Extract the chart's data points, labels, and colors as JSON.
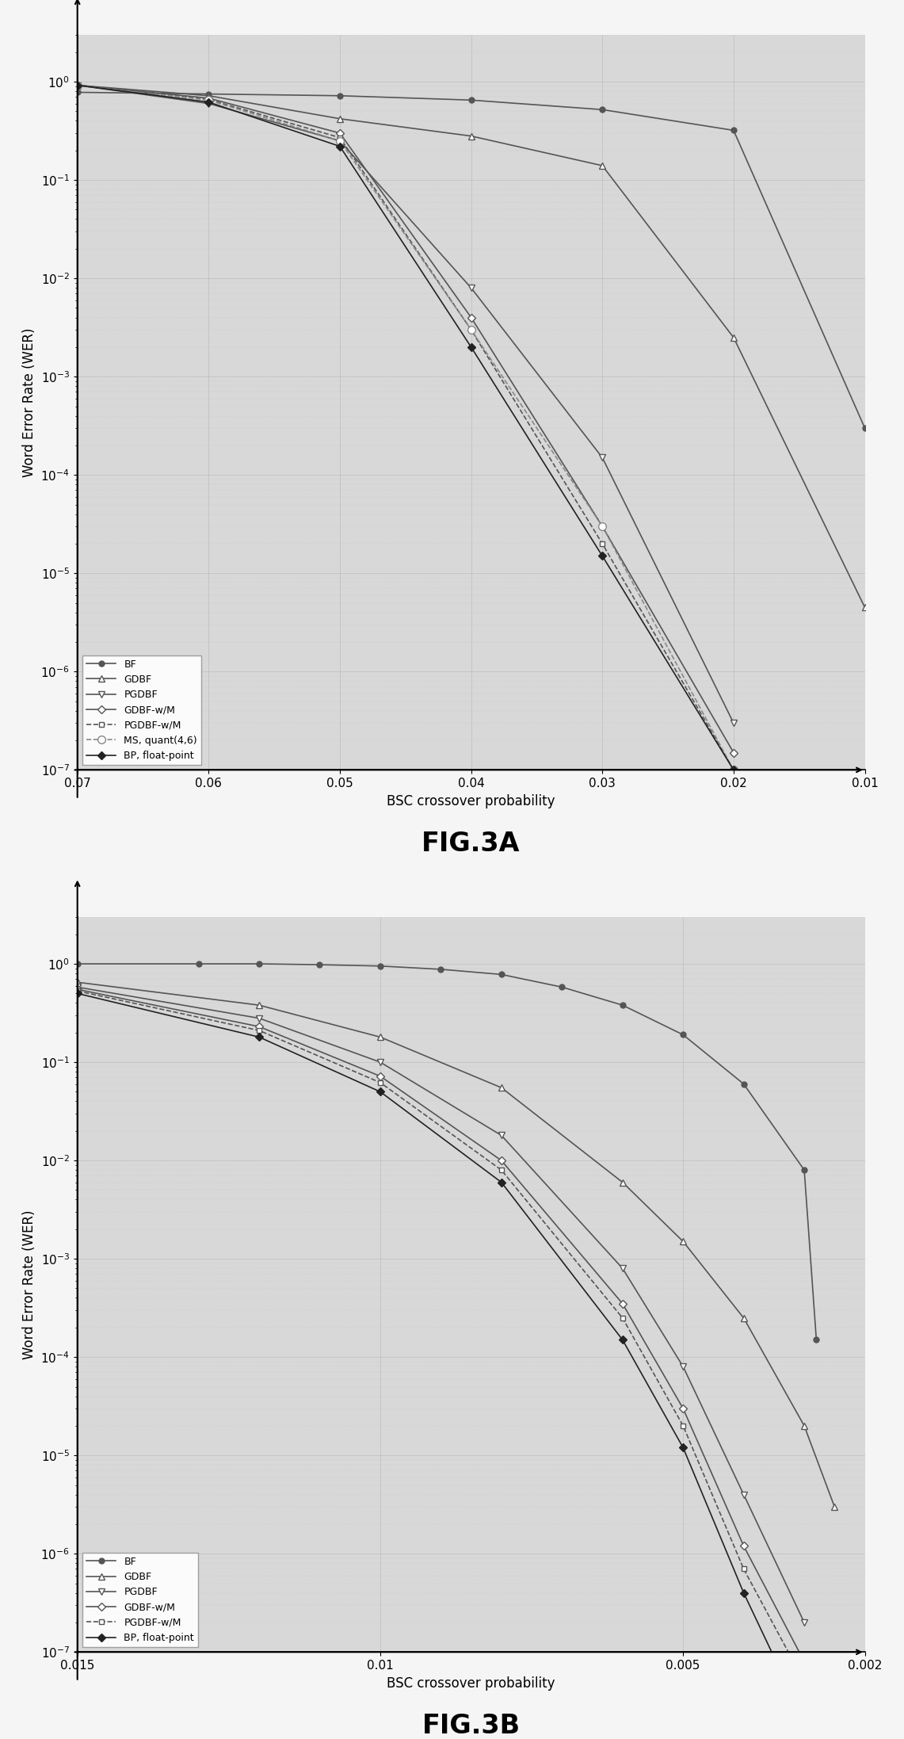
{
  "fig3a": {
    "title": "FIG.3A",
    "xlabel": "BSC crossover probability",
    "ylabel": "Word Error Rate (WER)",
    "xlim_left": 0.07,
    "xlim_right": 0.01,
    "ylim": [
      1e-07,
      3.0
    ],
    "xticks": [
      0.07,
      0.06,
      0.05,
      0.04,
      0.03,
      0.02,
      0.01
    ],
    "series": [
      {
        "label": "BF",
        "marker": "o",
        "markersize": 5,
        "linestyle": "-",
        "color": "#555555",
        "markerfacecolor": "#555555",
        "x": [
          0.07,
          0.06,
          0.05,
          0.04,
          0.03,
          0.02,
          0.01
        ],
        "y": [
          0.78,
          0.75,
          0.72,
          0.65,
          0.52,
          0.32,
          0.0003
        ]
      },
      {
        "label": "GDBF",
        "marker": "^",
        "markersize": 6,
        "linestyle": "-",
        "color": "#555555",
        "markerfacecolor": "white",
        "x": [
          0.07,
          0.06,
          0.05,
          0.04,
          0.03,
          0.02,
          0.01
        ],
        "y": [
          0.92,
          0.72,
          0.42,
          0.28,
          0.14,
          0.0025,
          4.5e-06
        ]
      },
      {
        "label": "PGDBF",
        "marker": "v",
        "markersize": 6,
        "linestyle": "-",
        "color": "#555555",
        "markerfacecolor": "white",
        "x": [
          0.07,
          0.06,
          0.05,
          0.04,
          0.03,
          0.02
        ],
        "y": [
          0.92,
          0.6,
          0.25,
          0.008,
          0.00015,
          3e-07
        ]
      },
      {
        "label": "GDBF-w/M",
        "marker": "D",
        "markersize": 5,
        "linestyle": "-",
        "color": "#555555",
        "markerfacecolor": "white",
        "x": [
          0.07,
          0.06,
          0.05,
          0.04,
          0.03,
          0.02
        ],
        "y": [
          0.92,
          0.68,
          0.3,
          0.004,
          3e-05,
          1.5e-07
        ]
      },
      {
        "label": "PGDBF-w/M",
        "marker": "s",
        "markersize": 5,
        "linestyle": "--",
        "color": "#555555",
        "markerfacecolor": "white",
        "x": [
          0.07,
          0.06,
          0.05,
          0.04,
          0.03,
          0.02
        ],
        "y": [
          0.92,
          0.66,
          0.27,
          0.003,
          2e-05,
          1e-07
        ]
      },
      {
        "label": "MS, quant(4,6)",
        "marker": "o",
        "markersize": 7,
        "linestyle": "--",
        "color": "#888888",
        "markerfacecolor": "white",
        "x": [
          0.07,
          0.06,
          0.05,
          0.04,
          0.03,
          0.02
        ],
        "y": [
          0.92,
          0.65,
          0.25,
          0.003,
          3e-05,
          1e-07
        ]
      },
      {
        "label": "BP, float-point",
        "marker": "D",
        "markersize": 5,
        "linestyle": "-",
        "color": "#222222",
        "markerfacecolor": "#222222",
        "x": [
          0.07,
          0.06,
          0.05,
          0.04,
          0.03,
          0.02
        ],
        "y": [
          0.92,
          0.62,
          0.22,
          0.002,
          1.5e-05,
          1e-07
        ]
      }
    ]
  },
  "fig3b": {
    "title": "FIG.3B",
    "xlabel": "BSC crossover probability",
    "ylabel": "Word Error Rate (WER)",
    "xlim_left": 0.015,
    "xlim_right": 0.002,
    "ylim": [
      1e-07,
      3.0
    ],
    "xticks": [
      0.015,
      0.01,
      0.005,
      0.002
    ],
    "series": [
      {
        "label": "BF",
        "marker": "o",
        "markersize": 5,
        "linestyle": "-",
        "color": "#555555",
        "markerfacecolor": "#555555",
        "x": [
          0.015,
          0.013,
          0.012,
          0.011,
          0.01,
          0.009,
          0.008,
          0.007,
          0.006,
          0.005,
          0.004,
          0.003,
          0.0028
        ],
        "y": [
          1.0,
          1.0,
          1.0,
          0.98,
          0.95,
          0.88,
          0.78,
          0.58,
          0.38,
          0.19,
          0.06,
          0.008,
          0.00015
        ]
      },
      {
        "label": "GDBF",
        "marker": "^",
        "markersize": 6,
        "linestyle": "-",
        "color": "#555555",
        "markerfacecolor": "white",
        "x": [
          0.015,
          0.012,
          0.01,
          0.008,
          0.006,
          0.005,
          0.004,
          0.003,
          0.0025
        ],
        "y": [
          0.65,
          0.38,
          0.18,
          0.055,
          0.006,
          0.0015,
          0.00025,
          2e-05,
          3e-06
        ]
      },
      {
        "label": "PGDBF",
        "marker": "v",
        "markersize": 6,
        "linestyle": "-",
        "color": "#555555",
        "markerfacecolor": "white",
        "x": [
          0.015,
          0.012,
          0.01,
          0.008,
          0.006,
          0.005,
          0.004,
          0.003
        ],
        "y": [
          0.58,
          0.28,
          0.1,
          0.018,
          0.0008,
          8e-05,
          4e-06,
          2e-07
        ]
      },
      {
        "label": "GDBF-w/M",
        "marker": "D",
        "markersize": 5,
        "linestyle": "-",
        "color": "#555555",
        "markerfacecolor": "white",
        "x": [
          0.015,
          0.012,
          0.01,
          0.008,
          0.006,
          0.005,
          0.004,
          0.003
        ],
        "y": [
          0.55,
          0.23,
          0.072,
          0.01,
          0.00035,
          3e-05,
          1.2e-06,
          8e-08
        ]
      },
      {
        "label": "PGDBF-w/M",
        "marker": "s",
        "markersize": 5,
        "linestyle": "--",
        "color": "#555555",
        "markerfacecolor": "white",
        "x": [
          0.015,
          0.012,
          0.01,
          0.008,
          0.006,
          0.005,
          0.004,
          0.003
        ],
        "y": [
          0.53,
          0.21,
          0.062,
          0.008,
          0.00025,
          2e-05,
          7e-07,
          5e-08
        ]
      },
      {
        "label": "BP, float-point",
        "marker": "D",
        "markersize": 5,
        "linestyle": "-",
        "color": "#222222",
        "markerfacecolor": "#222222",
        "x": [
          0.015,
          0.012,
          0.01,
          0.008,
          0.006,
          0.005,
          0.004,
          0.003
        ],
        "y": [
          0.5,
          0.18,
          0.05,
          0.006,
          0.00015,
          1.2e-05,
          4e-07,
          2e-08
        ]
      }
    ]
  },
  "background_color": "#d8d8d8",
  "fig_background": "#f5f5f5",
  "legend_fontsize": 9,
  "tick_fontsize": 11,
  "axis_label_fontsize": 12,
  "fig_label_fontsize": 24,
  "linewidth": 1.2
}
